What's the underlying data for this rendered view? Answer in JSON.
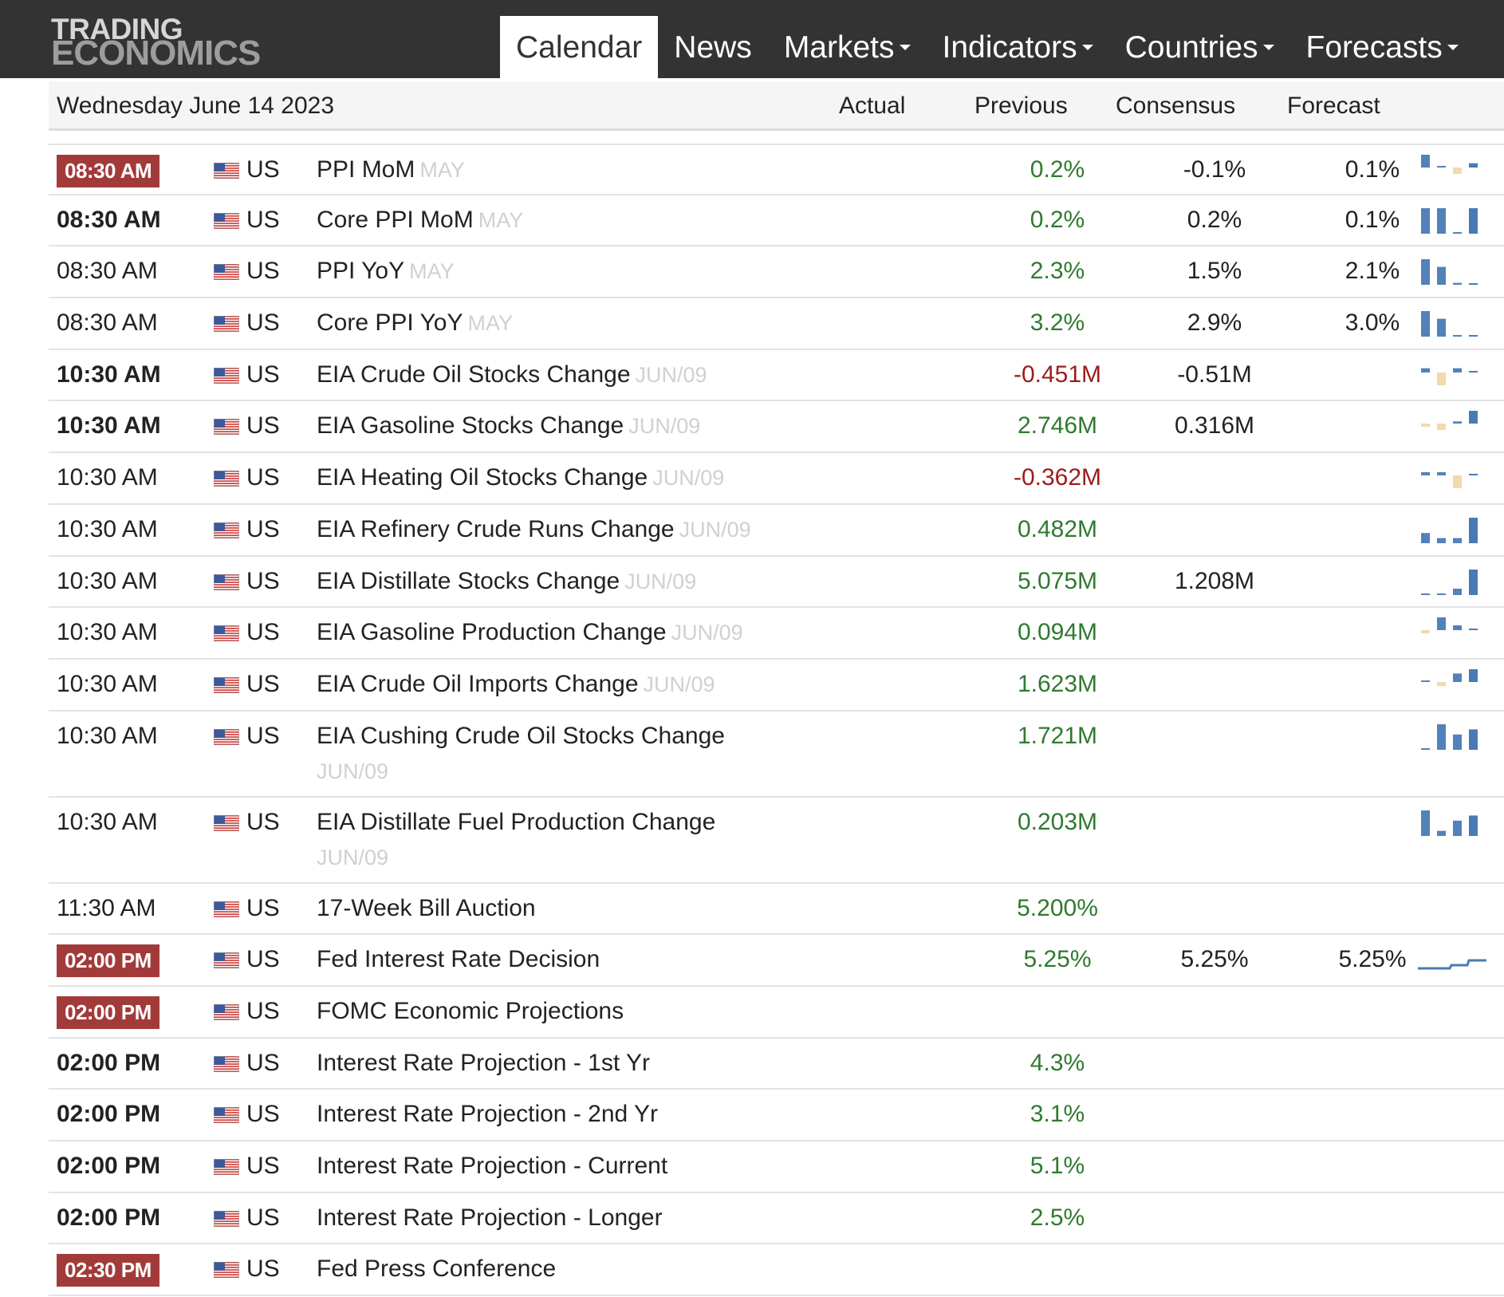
{
  "brand": {
    "line1": "TRADING",
    "line2": "ECONOMICS"
  },
  "nav": [
    {
      "label": "Calendar",
      "active": true,
      "dropdown": false
    },
    {
      "label": "News",
      "active": false,
      "dropdown": false
    },
    {
      "label": "Markets",
      "active": false,
      "dropdown": true
    },
    {
      "label": "Indicators",
      "active": false,
      "dropdown": true
    },
    {
      "label": "Countries",
      "active": false,
      "dropdown": true
    },
    {
      "label": "Forecasts",
      "active": false,
      "dropdown": true
    }
  ],
  "table": {
    "date": "Wednesday June 14 2023",
    "columns": {
      "actual": "Actual",
      "previous": "Previous",
      "consensus": "Consensus",
      "forecast": "Forecast"
    }
  },
  "colors": {
    "header_bg": "#333333",
    "badge": "#a33a3a",
    "positive": "#2f7a2f",
    "negative": "#9a1c1c",
    "spark_blue": "#4a7ab5",
    "spark_tan": "#f0d8a8"
  },
  "rows": [
    {
      "time": "08:30 AM",
      "style": "badge",
      "country": "US",
      "event": "PPI MoM",
      "ref": "MAY",
      "previous": "0.2%",
      "prev_sign": "pos",
      "consensus": "-0.1%",
      "forecast": "0.1%",
      "spark": [
        0.3,
        0,
        -0.15,
        0.1
      ]
    },
    {
      "time": "08:30 AM",
      "style": "bold",
      "country": "US",
      "event": "Core PPI MoM",
      "ref": "MAY",
      "previous": "0.2%",
      "prev_sign": "pos",
      "consensus": "0.2%",
      "forecast": "0.1%",
      "spark": [
        0.2,
        0.2,
        0,
        0.2
      ]
    },
    {
      "time": "08:30 AM",
      "style": "normal",
      "country": "US",
      "event": "PPI YoY",
      "ref": "MAY",
      "previous": "2.3%",
      "prev_sign": "pos",
      "consensus": "1.5%",
      "forecast": "2.1%",
      "spark": [
        4.0,
        2.8,
        0.3,
        0.2
      ]
    },
    {
      "time": "08:30 AM",
      "style": "normal",
      "country": "US",
      "event": "Core PPI YoY",
      "ref": "MAY",
      "previous": "3.2%",
      "prev_sign": "pos",
      "consensus": "2.9%",
      "forecast": "3.0%",
      "spark": [
        4.0,
        2.8,
        0.2,
        0.2
      ]
    },
    {
      "time": "10:30 AM",
      "style": "bold",
      "country": "US",
      "event": "EIA Crude Oil Stocks Change",
      "ref": "JUN/09",
      "previous": "-0.451M",
      "prev_sign": "neg",
      "consensus": "-0.51M",
      "forecast": "",
      "spark": [
        0.2,
        -0.6,
        0.2,
        0.05
      ]
    },
    {
      "time": "10:30 AM",
      "style": "bold",
      "country": "US",
      "event": "EIA Gasoline Stocks Change",
      "ref": "JUN/09",
      "previous": "2.746M",
      "prev_sign": "pos",
      "consensus": "0.316M",
      "forecast": "",
      "spark": [
        -0.15,
        -0.3,
        0.1,
        0.6
      ]
    },
    {
      "time": "10:30 AM",
      "style": "normal",
      "country": "US",
      "event": "EIA Heating Oil Stocks Change",
      "ref": "JUN/09",
      "previous": "-0.362M",
      "prev_sign": "neg",
      "consensus": "",
      "forecast": "",
      "spark": [
        0.2,
        0.2,
        -0.8,
        0.05
      ]
    },
    {
      "time": "10:30 AM",
      "style": "normal",
      "country": "US",
      "event": "EIA Refinery Crude Runs Change",
      "ref": "JUN/09",
      "previous": "0.482M",
      "prev_sign": "pos",
      "consensus": "",
      "forecast": "",
      "spark": [
        0.4,
        0.2,
        0.2,
        1.0
      ]
    },
    {
      "time": "10:30 AM",
      "style": "normal",
      "country": "US",
      "event": "EIA Distillate Stocks Change",
      "ref": "JUN/09",
      "previous": "5.075M",
      "prev_sign": "pos",
      "consensus": "1.208M",
      "forecast": "",
      "spark": [
        0.05,
        0.05,
        0.2,
        0.8
      ]
    },
    {
      "time": "10:30 AM",
      "style": "normal",
      "country": "US",
      "event": "EIA Gasoline Production Change",
      "ref": "JUN/09",
      "previous": "0.094M",
      "prev_sign": "pos",
      "consensus": "",
      "forecast": "",
      "spark": [
        -0.2,
        0.8,
        0.3,
        0.05
      ]
    },
    {
      "time": "10:30 AM",
      "style": "normal",
      "country": "US",
      "event": "EIA Crude Oil Imports Change",
      "ref": "JUN/09",
      "previous": "1.623M",
      "prev_sign": "pos",
      "consensus": "",
      "forecast": "",
      "spark": [
        0.05,
        -0.2,
        0.4,
        0.6
      ]
    },
    {
      "time": "10:30 AM",
      "style": "normal",
      "country": "US",
      "event": "EIA Cushing Crude Oil Stocks Change",
      "ref": "JUN/09",
      "wrap": true,
      "previous": "1.721M",
      "prev_sign": "pos",
      "consensus": "",
      "forecast": "",
      "spark": [
        0.05,
        1.0,
        0.6,
        0.8
      ]
    },
    {
      "time": "10:30 AM",
      "style": "normal",
      "country": "US",
      "event": "EIA Distillate Fuel Production Change",
      "ref": "JUN/09",
      "wrap": true,
      "previous": "0.203M",
      "prev_sign": "pos",
      "consensus": "",
      "forecast": "",
      "spark": [
        1.0,
        0.2,
        0.6,
        0.8
      ]
    },
    {
      "time": "11:30 AM",
      "style": "normal",
      "country": "US",
      "event": "17-Week Bill Auction",
      "ref": "",
      "previous": "5.200%",
      "prev_sign": "pos",
      "consensus": "",
      "forecast": "",
      "spark": null
    },
    {
      "time": "02:00 PM",
      "style": "badge",
      "country": "US",
      "event": "Fed Interest Rate Decision",
      "ref": "",
      "previous": "5.25%",
      "prev_sign": "pos",
      "consensus": "5.25%",
      "forecast": "5.25%",
      "spark": "line"
    },
    {
      "time": "02:00 PM",
      "style": "badge",
      "country": "US",
      "event": "FOMC Economic Projections",
      "ref": "",
      "previous": "",
      "prev_sign": "pos",
      "consensus": "",
      "forecast": "",
      "spark": null
    },
    {
      "time": "02:00 PM",
      "style": "bold",
      "country": "US",
      "event": "Interest Rate Projection - 1st Yr",
      "ref": "",
      "previous": "4.3%",
      "prev_sign": "pos",
      "consensus": "",
      "forecast": "",
      "spark": null
    },
    {
      "time": "02:00 PM",
      "style": "bold",
      "country": "US",
      "event": "Interest Rate Projection - 2nd Yr",
      "ref": "",
      "previous": "3.1%",
      "prev_sign": "pos",
      "consensus": "",
      "forecast": "",
      "spark": null
    },
    {
      "time": "02:00 PM",
      "style": "bold",
      "country": "US",
      "event": "Interest Rate Projection - Current",
      "ref": "",
      "previous": "5.1%",
      "prev_sign": "pos",
      "consensus": "",
      "forecast": "",
      "spark": null
    },
    {
      "time": "02:00 PM",
      "style": "bold",
      "country": "US",
      "event": "Interest Rate Projection - Longer",
      "ref": "",
      "previous": "2.5%",
      "prev_sign": "pos",
      "consensus": "",
      "forecast": "",
      "spark": null
    },
    {
      "time": "02:30 PM",
      "style": "badge",
      "country": "US",
      "event": "Fed Press Conference",
      "ref": "",
      "previous": "",
      "prev_sign": "pos",
      "consensus": "",
      "forecast": "",
      "spark": null
    }
  ]
}
